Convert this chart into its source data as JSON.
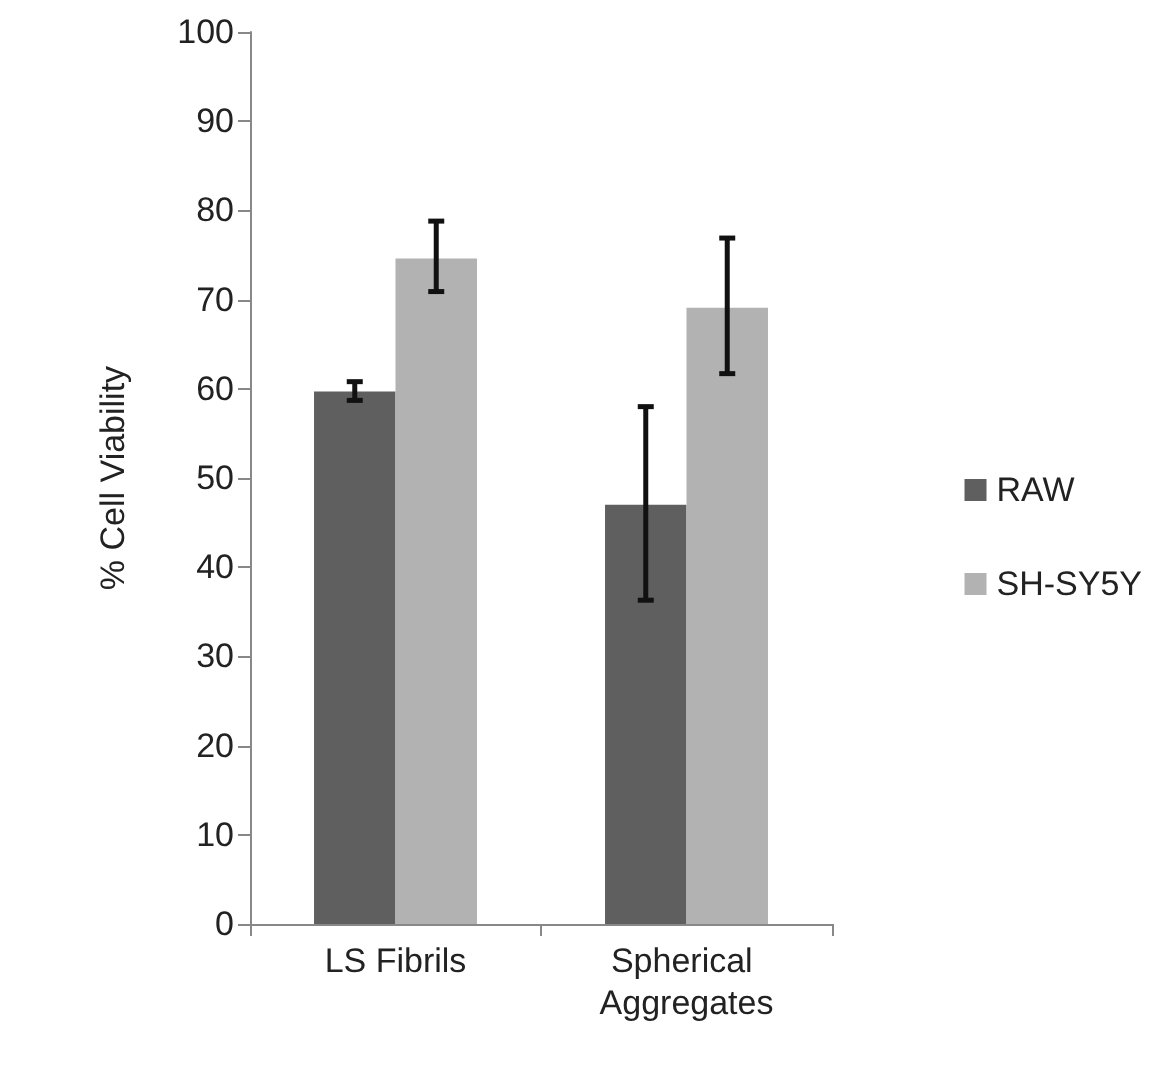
{
  "chart_data": {
    "type": "bar",
    "ylabel": "% Cell Viability",
    "categories": [
      "LS Fibrils",
      "Spherical Aggregates"
    ],
    "series": [
      {
        "name": "RAW",
        "color": "#5f5f5f",
        "values": [
          59.7,
          47.0
        ],
        "errors": [
          [
            58.7,
            60.8
          ],
          [
            36.3,
            58.0
          ]
        ]
      },
      {
        "name": "SH-SY5Y",
        "color": "#b2b2b2",
        "values": [
          74.6,
          69.1
        ],
        "errors": [
          [
            70.9,
            78.8
          ],
          [
            61.7,
            76.9
          ]
        ]
      }
    ],
    "ylim": [
      0,
      100
    ],
    "yticks": [
      0,
      10,
      20,
      30,
      40,
      50,
      60,
      70,
      80,
      90,
      100
    ],
    "grid": false,
    "legend": "right"
  }
}
